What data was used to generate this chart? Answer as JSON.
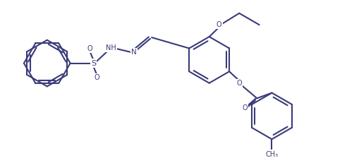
{
  "background_color": "#ffffff",
  "line_color": "#3a3a7a",
  "line_width": 1.5,
  "figsize": [
    4.92,
    2.24
  ],
  "dpi": 100,
  "xlim": [
    0,
    49.2
  ],
  "ylim": [
    0,
    22.4
  ]
}
